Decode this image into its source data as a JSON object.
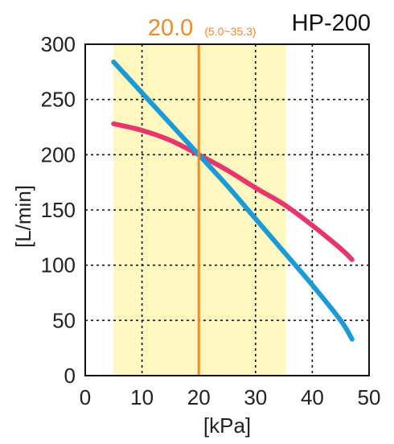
{
  "chart_data": {
    "type": "line",
    "title": "HP-200",
    "xlabel": "[kPa]",
    "ylabel": "[L/min]",
    "xlim": [
      0,
      50
    ],
    "ylim": [
      0,
      300
    ],
    "xticks": [
      "0",
      "10",
      "20",
      "30",
      "40",
      "50"
    ],
    "yticks": [
      "0",
      "50",
      "100",
      "150",
      "200",
      "250",
      "300"
    ],
    "grid": true,
    "legend": "none",
    "highlight_range": {
      "from": 5.0,
      "to": 35.3,
      "color": "#fff7c0"
    },
    "marker": {
      "x": 20.0,
      "label": "20.0",
      "range_label": "(5.0~35.3)",
      "color": "#f08a24"
    },
    "series": [
      {
        "color": "#e8356c",
        "x": [
          5,
          10,
          15,
          20,
          25,
          30,
          35,
          40,
          45,
          47
        ],
        "y": [
          228,
          222,
          213,
          200,
          186,
          170,
          155,
          136,
          115,
          105
        ]
      },
      {
        "color": "#1a9ad6",
        "x": [
          5,
          10,
          15,
          20,
          25,
          30,
          35,
          40,
          45,
          47
        ],
        "y": [
          284,
          256,
          228,
          200,
          172,
          142,
          112,
          82,
          50,
          33
        ]
      }
    ]
  }
}
